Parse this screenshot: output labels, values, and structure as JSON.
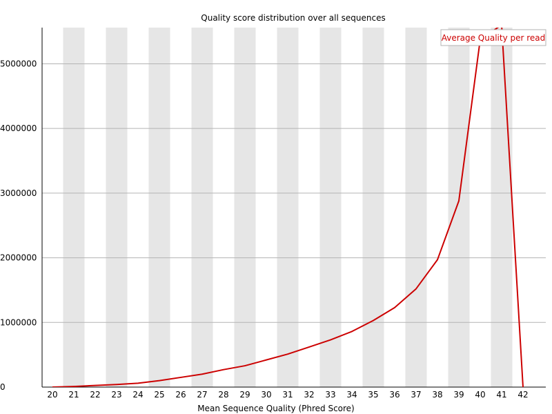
{
  "chart_data": {
    "type": "line",
    "title": "Quality score distribution over all sequences",
    "xlabel": "Mean Sequence Quality (Phred Score)",
    "ylabel": "",
    "xlim": [
      20,
      42
    ],
    "ylim": [
      0,
      5560000
    ],
    "y_ticks": [
      0,
      1000000,
      2000000,
      3000000,
      4000000,
      5000000
    ],
    "x_ticks": [
      20,
      21,
      22,
      23,
      24,
      25,
      26,
      27,
      28,
      29,
      30,
      31,
      32,
      33,
      34,
      35,
      36,
      37,
      38,
      39,
      40,
      41,
      42
    ],
    "grid": true,
    "legend_position": "top-right",
    "series": [
      {
        "name": "Average Quality per read",
        "color": "#cc0000",
        "x": [
          20,
          21,
          22,
          23,
          24,
          25,
          26,
          27,
          28,
          29,
          30,
          31,
          32,
          33,
          34,
          35,
          36,
          37,
          38,
          39,
          40,
          41,
          42
        ],
        "values": [
          0,
          10000,
          25000,
          40000,
          60000,
          100000,
          150000,
          200000,
          270000,
          330000,
          420000,
          510000,
          620000,
          730000,
          860000,
          1030000,
          1230000,
          1520000,
          1970000,
          2880000,
          5380000,
          5600000,
          0
        ]
      }
    ]
  },
  "colors": {
    "band": "#e6e6e6",
    "gridline": "#b3b3b3",
    "axis": "#000000"
  }
}
